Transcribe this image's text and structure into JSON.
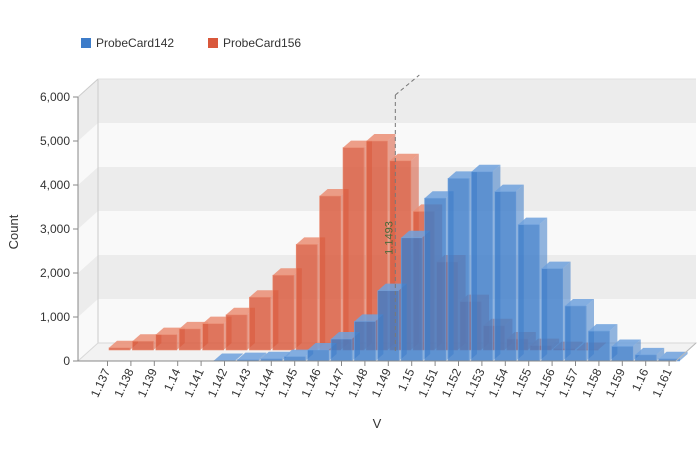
{
  "chart_data": {
    "type": "bar",
    "subtype": "3d-overlapping-histogram",
    "title": "",
    "xlabel": "V",
    "ylabel": "Count",
    "ylim": [
      0,
      6000
    ],
    "y_ticks": [
      "0",
      "1,000",
      "2,000",
      "3,000",
      "4,000",
      "5,000",
      "6,000"
    ],
    "grid": "alternating horizontal bands",
    "legend_position": "top-left",
    "categories": [
      "1.137",
      "1.138",
      "1.139",
      "1.14",
      "1.141",
      "1.142",
      "1.143",
      "1.144",
      "1.145",
      "1.146",
      "1.147",
      "1.148",
      "1.149",
      "1.15",
      "1.151",
      "1.152",
      "1.153",
      "1.154",
      "1.155",
      "1.156",
      "1.157",
      "1.158",
      "1.159",
      "1.16",
      "1.161"
    ],
    "series": [
      {
        "name": "ProbeCard142",
        "color": "#3d7cc9",
        "values": [
          0,
          0,
          0,
          0,
          0,
          10,
          30,
          50,
          100,
          250,
          500,
          900,
          1600,
          2800,
          3700,
          4150,
          4300,
          3850,
          3100,
          2100,
          1250,
          680,
          330,
          140,
          50
        ]
      },
      {
        "name": "ProbeCard156",
        "color": "#d9583b",
        "values": [
          50,
          200,
          350,
          480,
          600,
          800,
          1200,
          1700,
          2400,
          3500,
          4600,
          4750,
          4300,
          3150,
          2000,
          1100,
          550,
          250,
          100,
          30,
          10,
          0,
          0,
          0,
          0
        ]
      }
    ],
    "annotations": [
      {
        "text": "1.1493",
        "x": 1.1493,
        "orientation": "vertical dashed line"
      }
    ]
  }
}
